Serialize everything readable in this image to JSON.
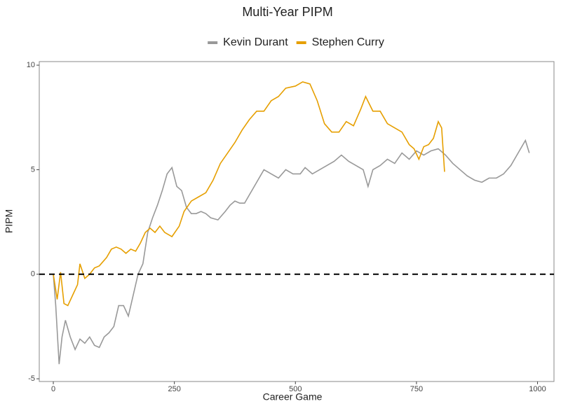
{
  "chart_data": {
    "type": "line",
    "title": "Multi-Year PIPM",
    "x_label": "Career Game",
    "y_label": "PIPM",
    "xlim": [
      -29,
      1034
    ],
    "ylim": [
      -5.13,
      10.17
    ],
    "xticks": [
      0,
      250,
      500,
      750,
      1000
    ],
    "yticks": [
      -5,
      0,
      5,
      10
    ],
    "reference_line": 0,
    "legend": "top",
    "series": [
      {
        "name": "Kevin Durant",
        "color": "#999999",
        "x": [
          0,
          5,
          12,
          18,
          25,
          35,
          45,
          55,
          65,
          75,
          85,
          95,
          105,
          115,
          125,
          135,
          145,
          155,
          165,
          175,
          185,
          195,
          205,
          215,
          225,
          235,
          245,
          255,
          265,
          275,
          285,
          295,
          305,
          315,
          325,
          340,
          355,
          365,
          375,
          385,
          395,
          405,
          420,
          435,
          450,
          465,
          480,
          495,
          510,
          520,
          535,
          550,
          565,
          580,
          595,
          610,
          625,
          640,
          650,
          660,
          675,
          690,
          705,
          720,
          735,
          750,
          765,
          780,
          795,
          810,
          825,
          840,
          855,
          870,
          885,
          900,
          915,
          930,
          945,
          960,
          975,
          983
        ],
        "values": [
          0.0,
          -1.5,
          -4.3,
          -3.0,
          -2.2,
          -3.0,
          -3.6,
          -3.1,
          -3.3,
          -3.0,
          -3.4,
          -3.5,
          -3.0,
          -2.8,
          -2.5,
          -1.5,
          -1.5,
          -2.0,
          -1.0,
          0.0,
          0.5,
          2.0,
          2.7,
          3.3,
          4.0,
          4.8,
          5.1,
          4.2,
          4.0,
          3.2,
          2.9,
          2.9,
          3.0,
          2.9,
          2.7,
          2.6,
          3.0,
          3.3,
          3.5,
          3.4,
          3.4,
          3.8,
          4.4,
          5.0,
          4.8,
          4.6,
          5.0,
          4.8,
          4.8,
          5.1,
          4.8,
          5.0,
          5.2,
          5.4,
          5.7,
          5.4,
          5.2,
          5.0,
          4.2,
          5.0,
          5.2,
          5.5,
          5.3,
          5.8,
          5.5,
          5.9,
          5.7,
          5.9,
          6.0,
          5.7,
          5.3,
          5.0,
          4.7,
          4.5,
          4.4,
          4.6,
          4.6,
          4.8,
          5.2,
          5.8,
          6.4,
          5.8
        ]
      },
      {
        "name": "Stephen Curry",
        "color": "#E69F00",
        "x": [
          0,
          8,
          15,
          22,
          30,
          40,
          50,
          55,
          65,
          75,
          85,
          95,
          110,
          120,
          130,
          140,
          150,
          160,
          170,
          180,
          190,
          200,
          210,
          220,
          230,
          245,
          260,
          270,
          285,
          300,
          315,
          330,
          345,
          360,
          375,
          390,
          405,
          420,
          435,
          450,
          465,
          480,
          500,
          515,
          530,
          545,
          560,
          575,
          590,
          605,
          620,
          635,
          645,
          660,
          675,
          690,
          705,
          720,
          735,
          745,
          755,
          765,
          775,
          785,
          795,
          802,
          808
        ],
        "values": [
          0.0,
          -1.2,
          0.1,
          -1.4,
          -1.5,
          -1.0,
          -0.5,
          0.5,
          -0.2,
          0.0,
          0.3,
          0.4,
          0.8,
          1.2,
          1.3,
          1.2,
          1.0,
          1.2,
          1.1,
          1.5,
          2.0,
          2.2,
          2.0,
          2.3,
          2.0,
          1.8,
          2.3,
          3.0,
          3.5,
          3.7,
          3.9,
          4.5,
          5.3,
          5.8,
          6.3,
          6.9,
          7.4,
          7.8,
          7.8,
          8.3,
          8.5,
          8.9,
          9.0,
          9.2,
          9.1,
          8.3,
          7.2,
          6.8,
          6.8,
          7.3,
          7.1,
          7.9,
          8.5,
          7.8,
          7.8,
          7.2,
          7.0,
          6.8,
          6.2,
          6.0,
          5.5,
          6.1,
          6.2,
          6.5,
          7.3,
          7.0,
          4.9
        ]
      }
    ]
  }
}
